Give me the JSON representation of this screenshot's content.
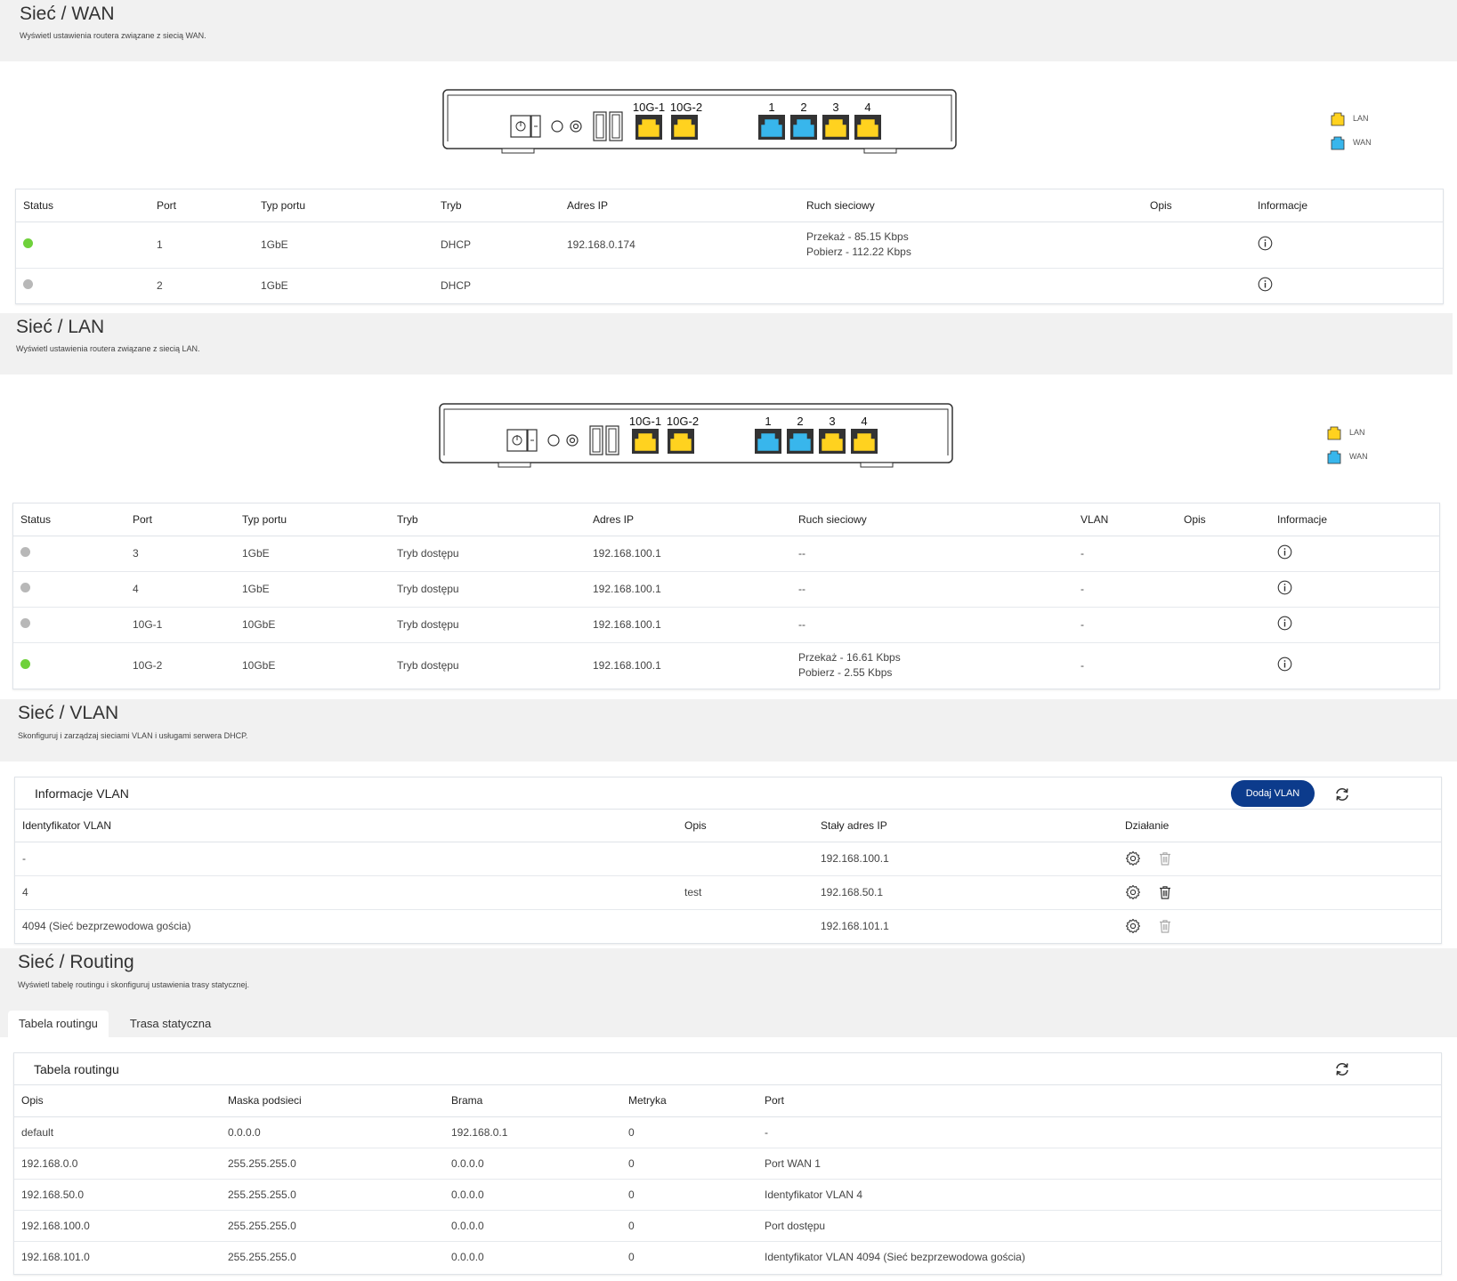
{
  "wan": {
    "title": "Sieć / WAN",
    "subtitle": "Wyświetl ustawienia routera związane z siecią WAN.",
    "columns": [
      "Status",
      "Port",
      "Typ portu",
      "Tryb",
      "Adres IP",
      "Ruch sieciowy",
      "Opis",
      "Informacje"
    ],
    "rows": [
      {
        "status": "green",
        "port": "1",
        "type": "1GbE",
        "mode": "DHCP",
        "ip": "192.168.0.174",
        "traffic_up": "Przekaż - 85.15 Kbps",
        "traffic_down": "Pobierz - 112.22 Kbps",
        "desc": ""
      },
      {
        "status": "gray",
        "port": "2",
        "type": "1GbE",
        "mode": "DHCP",
        "ip": "",
        "traffic_up": "",
        "traffic_down": "",
        "desc": ""
      }
    ]
  },
  "lan": {
    "title": "Sieć / LAN",
    "subtitle": "Wyświetl ustawienia routera związane z siecią LAN.",
    "columns": [
      "Status",
      "Port",
      "Typ portu",
      "Tryb",
      "Adres IP",
      "Ruch sieciowy",
      "VLAN",
      "Opis",
      "Informacje"
    ],
    "rows": [
      {
        "status": "gray",
        "port": "3",
        "type": "1GbE",
        "mode": "Tryb dostępu",
        "ip": "192.168.100.1",
        "traffic_up": "--",
        "traffic_down": "",
        "vlan": "-",
        "desc": ""
      },
      {
        "status": "gray",
        "port": "4",
        "type": "1GbE",
        "mode": "Tryb dostępu",
        "ip": "192.168.100.1",
        "traffic_up": "--",
        "traffic_down": "",
        "vlan": "-",
        "desc": ""
      },
      {
        "status": "gray",
        "port": "10G-1",
        "type": "10GbE",
        "mode": "Tryb dostępu",
        "ip": "192.168.100.1",
        "traffic_up": "--",
        "traffic_down": "",
        "vlan": "-",
        "desc": ""
      },
      {
        "status": "green",
        "port": "10G-2",
        "type": "10GbE",
        "mode": "Tryb dostępu",
        "ip": "192.168.100.1",
        "traffic_up": "Przekaż - 16.61 Kbps",
        "traffic_down": "Pobierz - 2.55 Kbps",
        "vlan": "-",
        "desc": ""
      }
    ]
  },
  "router": {
    "port_labels": [
      "10G-1",
      "10G-2",
      "1",
      "2",
      "3",
      "4"
    ],
    "legend_lan": "LAN",
    "legend_wan": "WAN",
    "lan_color": "#ffd21f",
    "wan_color": "#38b6ec"
  },
  "vlan": {
    "title": "Sieć / VLAN",
    "subtitle": "Skonfiguruj i zarządzaj sieciami VLAN i usługami serwera DHCP.",
    "card_title": "Informacje VLAN",
    "add_button": "Dodaj VLAN",
    "columns": [
      "Identyfikator VLAN",
      "Opis",
      "Stały adres IP",
      "Działanie"
    ],
    "rows": [
      {
        "id": "-",
        "desc": "",
        "ip": "192.168.100.1",
        "delete_enabled": false
      },
      {
        "id": "4",
        "desc": "test",
        "ip": "192.168.50.1",
        "delete_enabled": true
      },
      {
        "id": "4094 (Sieć bezprzewodowa gościa)",
        "desc": "",
        "ip": "192.168.101.1",
        "delete_enabled": false
      }
    ]
  },
  "routing": {
    "title": "Sieć / Routing",
    "subtitle": "Wyświetl tabelę routingu i skonfiguruj ustawienia trasy statycznej.",
    "tabs": [
      "Tabela routingu",
      "Trasa statyczna"
    ],
    "card_title": "Tabela routingu",
    "columns": [
      "Opis",
      "Maska podsieci",
      "Brama",
      "Metryka",
      "Port"
    ],
    "rows": [
      {
        "desc": "default",
        "mask": "0.0.0.0",
        "gateway": "192.168.0.1",
        "metric": "0",
        "port": "-"
      },
      {
        "desc": "192.168.0.0",
        "mask": "255.255.255.0",
        "gateway": "0.0.0.0",
        "metric": "0",
        "port": "Port WAN 1"
      },
      {
        "desc": "192.168.50.0",
        "mask": "255.255.255.0",
        "gateway": "0.0.0.0",
        "metric": "0",
        "port": "Identyfikator VLAN 4"
      },
      {
        "desc": "192.168.100.0",
        "mask": "255.255.255.0",
        "gateway": "0.0.0.0",
        "metric": "0",
        "port": "Port dostępu"
      },
      {
        "desc": "192.168.101.0",
        "mask": "255.255.255.0",
        "gateway": "0.0.0.0",
        "metric": "0",
        "port": "Identyfikator VLAN 4094 (Sieć bezprzewodowa gościa)"
      }
    ]
  }
}
